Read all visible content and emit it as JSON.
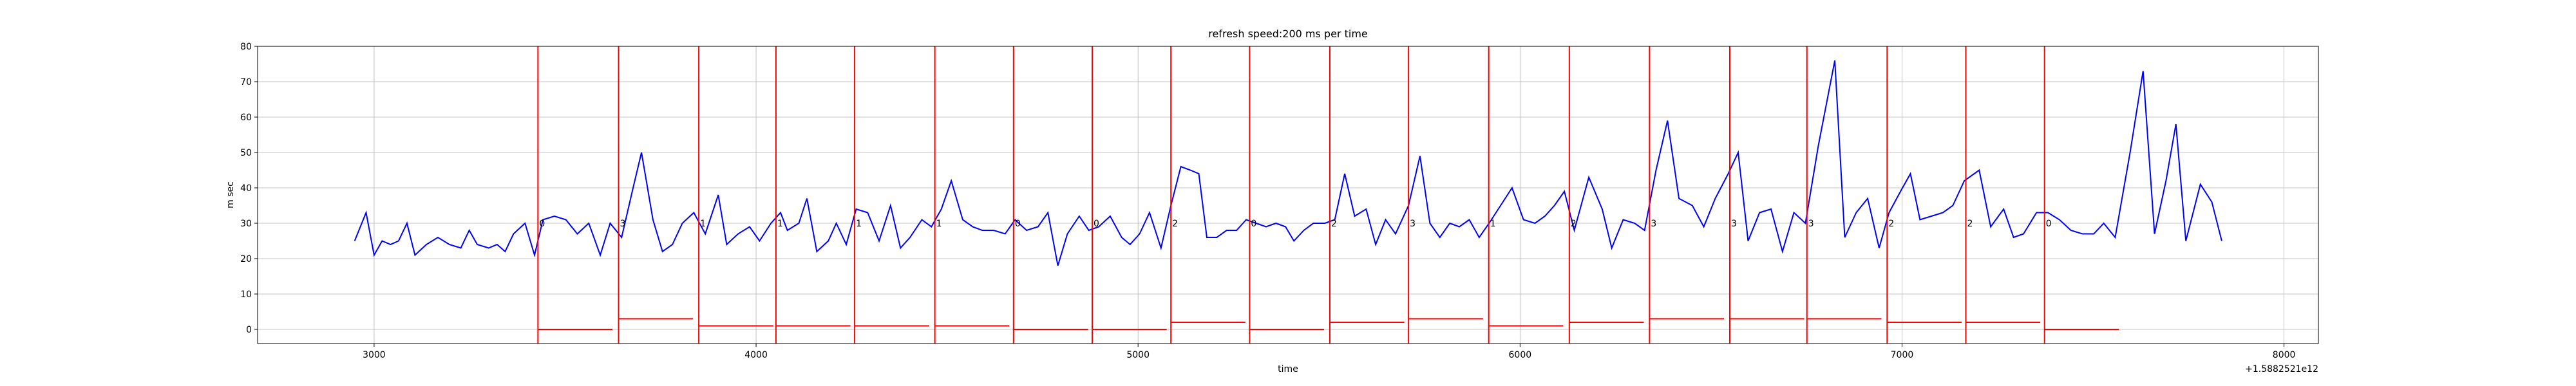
{
  "chart_data": {
    "type": "line",
    "title": "refresh speed:200 ms per time",
    "x_label": "time",
    "y_label": "m sec",
    "x_offset_label": "+1.5882521e12",
    "xlim": [
      2695,
      8090
    ],
    "ylim": [
      -4,
      80
    ],
    "xticks": [
      3000,
      4000,
      5000,
      6000,
      7000,
      8000
    ],
    "yticks": [
      0,
      10,
      20,
      30,
      40,
      50,
      60,
      70,
      80
    ],
    "grid": true,
    "series": [
      {
        "color": "#0000ff",
        "x": [
          2949,
          2979,
          3000,
          3021,
          3043,
          3064,
          3086,
          3107,
          3137,
          3167,
          3197,
          3227,
          3249,
          3270,
          3300,
          3322,
          3343,
          3365,
          3395,
          3420,
          3442,
          3472,
          3502,
          3532,
          3562,
          3592,
          3618,
          3648,
          3678,
          3700,
          3730,
          3755,
          3781,
          3807,
          3837,
          3867,
          3901,
          3923,
          3953,
          3983,
          4009,
          4039,
          4064,
          4082,
          4112,
          4133,
          4159,
          4189,
          4210,
          4236,
          4262,
          4292,
          4322,
          4352,
          4378,
          4403,
          4434,
          4459,
          4485,
          4511,
          4541,
          4567,
          4592,
          4622,
          4652,
          4678,
          4708,
          4738,
          4764,
          4790,
          4815,
          4846,
          4871,
          4897,
          4927,
          4957,
          4979,
          5004,
          5030,
          5060,
          5086,
          5112,
          5137,
          5159,
          5180,
          5206,
          5232,
          5258,
          5283,
          5309,
          5335,
          5361,
          5386,
          5408,
          5434,
          5459,
          5489,
          5515,
          5541,
          5567,
          5597,
          5622,
          5648,
          5674,
          5708,
          5738,
          5764,
          5790,
          5816,
          5841,
          5867,
          5893,
          5919,
          5949,
          5979,
          6009,
          6039,
          6065,
          6090,
          6116,
          6142,
          6180,
          6215,
          6240,
          6270,
          6300,
          6326,
          6356,
          6386,
          6416,
          6451,
          6481,
          6511,
          6545,
          6571,
          6597,
          6627,
          6657,
          6687,
          6717,
          6747,
          6781,
          6824,
          6850,
          6880,
          6910,
          6940,
          6966,
          6996,
          7022,
          7047,
          7077,
          7107,
          7133,
          7163,
          7202,
          7232,
          7266,
          7292,
          7318,
          7352,
          7382,
          7412,
          7442,
          7472,
          7502,
          7528,
          7558,
          7597,
          7631,
          7661,
          7691,
          7717,
          7743,
          7781,
          7811,
          7837
        ],
        "values": [
          25,
          33,
          21,
          25,
          24,
          25,
          30,
          21,
          24,
          26,
          24,
          23,
          28,
          24,
          23,
          24,
          22,
          27,
          30,
          21,
          31,
          32,
          31,
          27,
          30,
          21,
          30,
          26,
          40,
          50,
          31,
          22,
          24,
          30,
          33,
          27,
          38,
          24,
          27,
          29,
          25,
          30,
          33,
          28,
          30,
          37,
          22,
          25,
          30,
          24,
          34,
          33,
          25,
          35,
          23,
          26,
          31,
          29,
          34,
          42,
          31,
          29,
          28,
          28,
          27,
          31,
          28,
          29,
          33,
          18,
          27,
          32,
          28,
          29,
          32,
          26,
          24,
          27,
          33,
          23,
          35,
          46,
          45,
          44,
          26,
          26,
          28,
          28,
          31,
          30,
          29,
          30,
          29,
          25,
          28,
          30,
          30,
          31,
          44,
          32,
          34,
          24,
          31,
          27,
          35,
          49,
          30,
          26,
          30,
          29,
          31,
          26,
          30,
          35,
          40,
          31,
          30,
          32,
          35,
          39,
          28,
          43,
          34,
          23,
          31,
          30,
          28,
          45,
          59,
          37,
          35,
          29,
          37,
          44,
          50,
          25,
          33,
          34,
          22,
          33,
          30,
          52,
          76,
          26,
          33,
          37,
          23,
          33,
          39,
          44,
          31,
          32,
          33,
          35,
          42,
          45,
          29,
          34,
          26,
          27,
          33,
          33,
          31,
          28,
          27,
          27,
          30,
          26,
          50,
          73,
          27,
          42,
          58,
          25,
          41,
          36,
          25
        ]
      }
    ],
    "event_color": "#ff0000",
    "annotation_y": 30,
    "events": [
      {
        "start": 3429,
        "end": 3624,
        "level": 0
      },
      {
        "start": 3640,
        "end": 3835,
        "level": 3
      },
      {
        "start": 3850,
        "end": 4045,
        "level": 1
      },
      {
        "start": 4052,
        "end": 4247,
        "level": 1
      },
      {
        "start": 4258,
        "end": 4453,
        "level": 1
      },
      {
        "start": 4468,
        "end": 4663,
        "level": 1
      },
      {
        "start": 4674,
        "end": 4869,
        "level": 0
      },
      {
        "start": 4880,
        "end": 5075,
        "level": 0
      },
      {
        "start": 5086,
        "end": 5281,
        "level": 2
      },
      {
        "start": 5292,
        "end": 5487,
        "level": 0
      },
      {
        "start": 5502,
        "end": 5697,
        "level": 2
      },
      {
        "start": 5708,
        "end": 5903,
        "level": 3
      },
      {
        "start": 5918,
        "end": 6113,
        "level": 1
      },
      {
        "start": 6129,
        "end": 6324,
        "level": 2
      },
      {
        "start": 6339,
        "end": 6534,
        "level": 3
      },
      {
        "start": 6549,
        "end": 6744,
        "level": 3
      },
      {
        "start": 6751,
        "end": 6946,
        "level": 3
      },
      {
        "start": 6961,
        "end": 7156,
        "level": 2
      },
      {
        "start": 7167,
        "end": 7362,
        "level": 2
      },
      {
        "start": 7373,
        "end": 7568,
        "level": 0
      }
    ]
  }
}
